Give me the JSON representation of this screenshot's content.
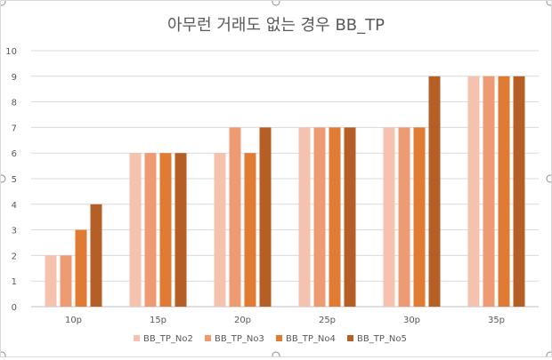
{
  "chart_data": {
    "type": "bar",
    "title": "아무런 거래도 없는 경우 BB_TP",
    "xlabel": "",
    "ylabel": "",
    "categories": [
      "10p",
      "15p",
      "20p",
      "25p",
      "30p",
      "35p"
    ],
    "series": [
      {
        "name": "BB_TP_No2",
        "color": "#F4C2AE",
        "values": [
          2,
          6,
          6,
          7,
          7,
          9
        ]
      },
      {
        "name": "BB_TP_No3",
        "color": "#EE9B73",
        "values": [
          2,
          6,
          7,
          7,
          7,
          9
        ]
      },
      {
        "name": "BB_TP_No4",
        "color": "#E07B33",
        "values": [
          3,
          6,
          6,
          7,
          7,
          9
        ]
      },
      {
        "name": "BB_TP_No5",
        "color": "#B55F27",
        "values": [
          4,
          6,
          7,
          7,
          9,
          9
        ]
      }
    ],
    "ylim": [
      0,
      10
    ],
    "yticks": [
      "0",
      "1",
      "2",
      "3",
      "4",
      "5",
      "6",
      "7",
      "8",
      "9",
      "10"
    ],
    "grid": true,
    "legend_position": "bottom"
  }
}
